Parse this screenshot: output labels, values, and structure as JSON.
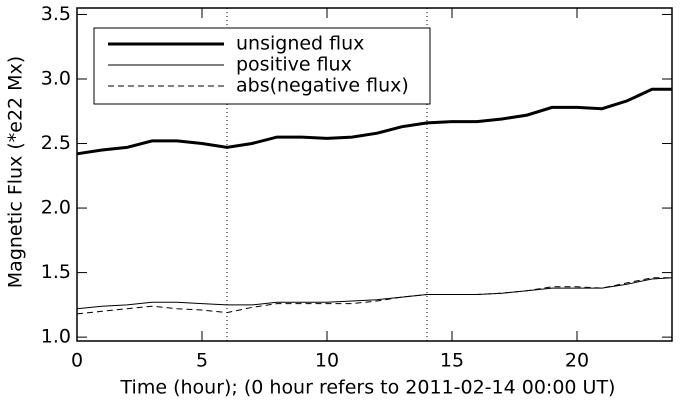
{
  "chart_data": {
    "type": "line",
    "xlabel": "Time (hour); (0 hour refers to 2011-02-14 00:00 UT)",
    "ylabel": "Magnetic Flux (*e22 Mx)",
    "x": [
      0,
      1,
      2,
      3,
      4,
      5,
      6,
      7,
      8,
      9,
      10,
      11,
      12,
      13,
      14,
      15,
      16,
      17,
      18,
      19,
      20,
      21,
      22,
      23,
      23.8
    ],
    "series": [
      {
        "name": "unsigned flux",
        "color": "#000000",
        "width": 3,
        "dash": "none",
        "values": [
          2.42,
          2.45,
          2.47,
          2.52,
          2.52,
          2.5,
          2.47,
          2.5,
          2.55,
          2.55,
          2.54,
          2.55,
          2.58,
          2.63,
          2.66,
          2.67,
          2.67,
          2.69,
          2.72,
          2.78,
          2.78,
          2.77,
          2.83,
          2.92,
          2.92
        ]
      },
      {
        "name": "positive flux",
        "color": "#000000",
        "width": 1,
        "dash": "none",
        "values": [
          1.22,
          1.24,
          1.25,
          1.27,
          1.27,
          1.26,
          1.25,
          1.25,
          1.27,
          1.27,
          1.27,
          1.28,
          1.29,
          1.31,
          1.33,
          1.33,
          1.33,
          1.34,
          1.36,
          1.38,
          1.38,
          1.38,
          1.41,
          1.45,
          1.46
        ]
      },
      {
        "name": "abs(negative flux)",
        "color": "#000000",
        "width": 1,
        "dash": "6,4",
        "values": [
          1.18,
          1.2,
          1.22,
          1.24,
          1.22,
          1.21,
          1.19,
          1.23,
          1.26,
          1.26,
          1.26,
          1.26,
          1.28,
          1.31,
          1.33,
          1.33,
          1.33,
          1.34,
          1.36,
          1.39,
          1.39,
          1.38,
          1.42,
          1.46,
          1.46
        ]
      }
    ],
    "vlines": [
      6,
      14
    ],
    "xlim": [
      0,
      23.8
    ],
    "xticks": [
      0,
      5,
      10,
      15,
      20
    ],
    "ylim": [
      0.97,
      3.55
    ],
    "yticks": [
      {
        "value": 1.0,
        "label": "1.0"
      },
      {
        "value": 1.5,
        "label": "1.5"
      },
      {
        "value": 2.0,
        "label": "2.0"
      },
      {
        "value": 2.5,
        "label": "2.5"
      },
      {
        "value": 3.0,
        "label": "3.0"
      },
      {
        "value": 3.5,
        "label": "3.5"
      }
    ],
    "legend": "upper-left"
  }
}
